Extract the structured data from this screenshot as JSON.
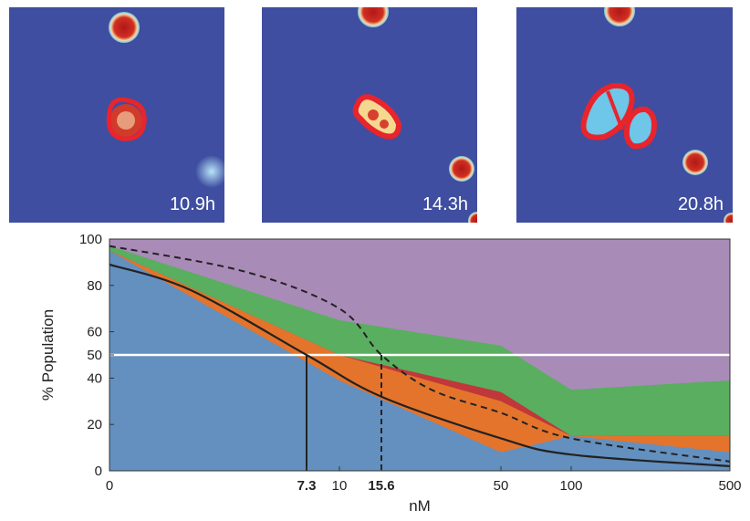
{
  "panels": [
    {
      "time_label": "10.9h"
    },
    {
      "time_label": "14.3h"
    },
    {
      "time_label": "20.8h"
    }
  ],
  "colors": {
    "panel_bg": "#3f4ea0",
    "cell_red": "#c8241c",
    "outline_red": "#e8242c",
    "band_blue": "#6390bf",
    "band_orange": "#e4742c",
    "band_darkred": "#c0383a",
    "band_green": "#5aae60",
    "band_purple": "#a98bb8",
    "half_line": "#ffffff"
  },
  "chart_data": {
    "type": "area",
    "xlabel": "nM",
    "ylabel": "% Population",
    "x_scale": "log-like",
    "xlim": [
      0,
      500
    ],
    "ylim": [
      0,
      100
    ],
    "x_ticks": [
      "0",
      "7.3",
      "10",
      "15.6",
      "50",
      "100",
      "500"
    ],
    "x_ticks_bold": [
      "7.3",
      "15.6"
    ],
    "y_ticks": [
      "0",
      "20",
      "40",
      "50",
      "60",
      "80",
      "100"
    ],
    "x": [
      0,
      10,
      50,
      100,
      500
    ],
    "bands": [
      {
        "color": "#6390bf",
        "upper": [
          95,
          39,
          8,
          15,
          8
        ]
      },
      {
        "color": "#e4742c",
        "upper": [
          95,
          50,
          30,
          15,
          15
        ]
      },
      {
        "color": "#c0383a",
        "upper": [
          95,
          50,
          34,
          15,
          15
        ]
      },
      {
        "color": "#5aae60",
        "upper": [
          97,
          65,
          54,
          35,
          39
        ]
      },
      {
        "color": "#a98bb8",
        "upper": [
          100,
          100,
          100,
          100,
          100
        ]
      }
    ],
    "solid_curve": {
      "x": [
        0,
        3,
        7.3,
        15.6,
        50,
        100,
        500
      ],
      "y": [
        89,
        78,
        50,
        32,
        14,
        7,
        2
      ]
    },
    "dashed_curve": {
      "x": [
        0,
        5,
        10,
        15.6,
        30,
        50,
        100,
        500
      ],
      "y": [
        97,
        86,
        70,
        50,
        35,
        25,
        14,
        4
      ]
    },
    "half_line_y": 50,
    "markers": [
      {
        "x": 7.3,
        "y": 50,
        "style": "solid"
      },
      {
        "x": 15.6,
        "y": 50,
        "style": "dashed"
      }
    ]
  }
}
